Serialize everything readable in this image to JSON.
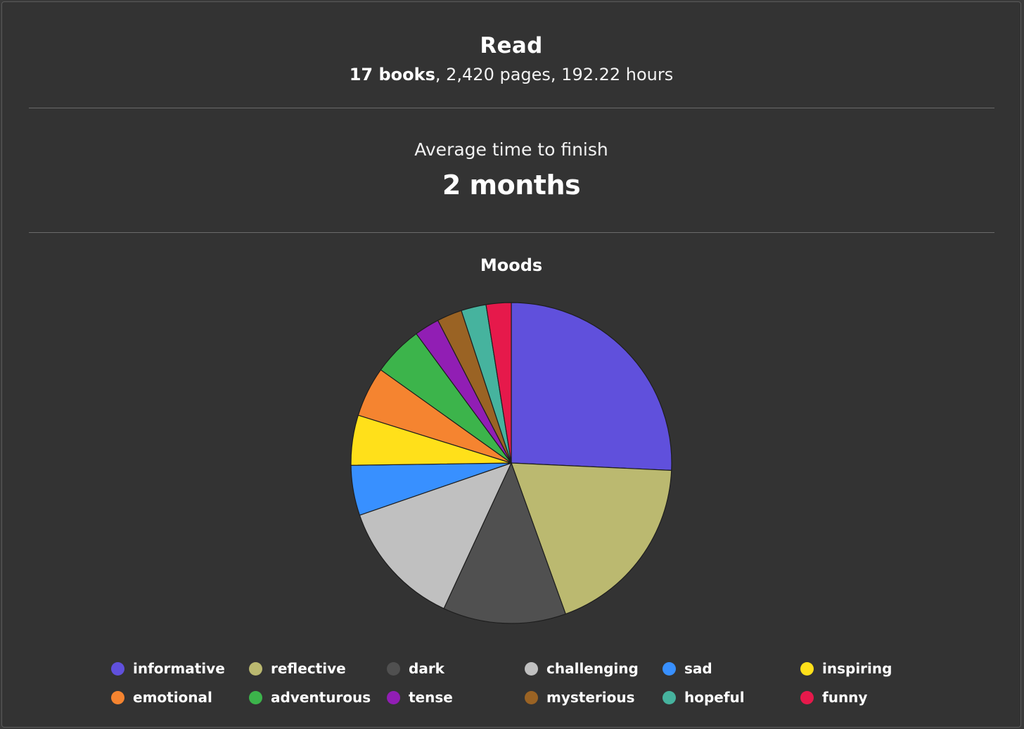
{
  "header": {
    "title": "Read",
    "summary_bold": "17 books",
    "summary_rest": ", 2,420 pages, 192.22 hours"
  },
  "average": {
    "label": "Average time to finish",
    "value": "2 months"
  },
  "chart_data": {
    "type": "pie",
    "title": "Moods",
    "legend": "bottom",
    "slices": [
      {
        "label": "informative",
        "value": 25.5,
        "color": "#6050dc"
      },
      {
        "label": "reflective",
        "value": 18.6,
        "color": "#bbb970"
      },
      {
        "label": "dark",
        "value": 12.3,
        "color": "#505050"
      },
      {
        "label": "challenging",
        "value": 12.7,
        "color": "#c0c0c0"
      },
      {
        "label": "sad",
        "value": 5.0,
        "color": "#3890ff"
      },
      {
        "label": "inspiring",
        "value": 5.0,
        "color": "#ffe01a"
      },
      {
        "label": "emotional",
        "value": 5.0,
        "color": "#f58430"
      },
      {
        "label": "adventurous",
        "value": 5.0,
        "color": "#3cb44b"
      },
      {
        "label": "tense",
        "value": 2.5,
        "color": "#911eb4"
      },
      {
        "label": "mysterious",
        "value": 2.5,
        "color": "#9a6324"
      },
      {
        "label": "hopeful",
        "value": 2.5,
        "color": "#46b39e"
      },
      {
        "label": "funny",
        "value": 2.5,
        "color": "#e6194b"
      }
    ]
  }
}
